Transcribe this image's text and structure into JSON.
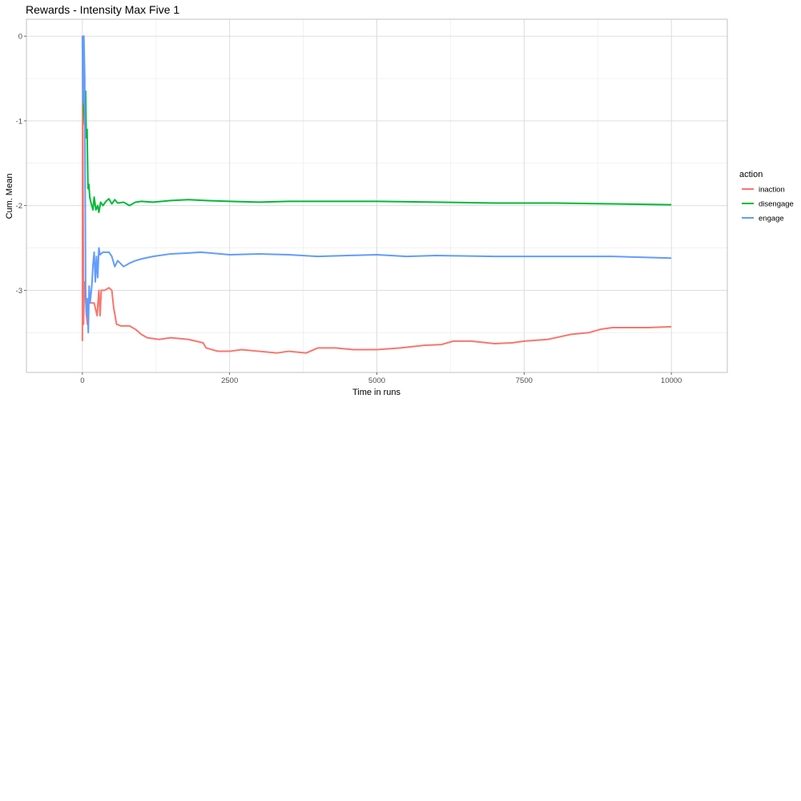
{
  "chart_data": {
    "type": "line",
    "title": "Rewards - Intensity Max Five 1",
    "xlabel": "Time in runs",
    "ylabel": "Cum. Mean",
    "xlim": [
      -950,
      10950
    ],
    "ylim": [
      -3.97,
      0.2
    ],
    "x_ticks": [
      0,
      2500,
      5000,
      7500,
      10000
    ],
    "x_tick_labels": [
      "0",
      "2500",
      "5000",
      "7500",
      "10000"
    ],
    "y_ticks": [
      0,
      -1,
      -2,
      -3
    ],
    "y_tick_labels": [
      "0",
      "-1",
      "-2",
      "-3"
    ],
    "grid": true,
    "legend": {
      "title": "action",
      "position": "right"
    },
    "series": [
      {
        "name": "inaction",
        "color": "#F8766D",
        "points": [
          [
            0,
            -3.6
          ],
          [
            5,
            0
          ],
          [
            10,
            -1.5
          ],
          [
            20,
            -3.4
          ],
          [
            30,
            -3.0
          ],
          [
            40,
            -2.9
          ],
          [
            55,
            -3.1
          ],
          [
            70,
            -3.3
          ],
          [
            85,
            -3.4
          ],
          [
            100,
            -3.15
          ],
          [
            200,
            -3.15
          ],
          [
            250,
            -3.3
          ],
          [
            280,
            -3.0
          ],
          [
            300,
            -3.3
          ],
          [
            320,
            -3.0
          ],
          [
            380,
            -3.0
          ],
          [
            450,
            -2.97
          ],
          [
            500,
            -3.0
          ],
          [
            530,
            -3.2
          ],
          [
            580,
            -3.4
          ],
          [
            650,
            -3.42
          ],
          [
            800,
            -3.42
          ],
          [
            900,
            -3.46
          ],
          [
            1000,
            -3.52
          ],
          [
            1100,
            -3.56
          ],
          [
            1300,
            -3.58
          ],
          [
            1500,
            -3.56
          ],
          [
            1800,
            -3.58
          ],
          [
            2050,
            -3.62
          ],
          [
            2100,
            -3.68
          ],
          [
            2300,
            -3.72
          ],
          [
            2500,
            -3.72
          ],
          [
            2700,
            -3.7
          ],
          [
            3000,
            -3.72
          ],
          [
            3300,
            -3.74
          ],
          [
            3500,
            -3.72
          ],
          [
            3800,
            -3.74
          ],
          [
            4000,
            -3.68
          ],
          [
            4300,
            -3.68
          ],
          [
            4600,
            -3.7
          ],
          [
            5000,
            -3.7
          ],
          [
            5400,
            -3.68
          ],
          [
            5800,
            -3.65
          ],
          [
            6100,
            -3.64
          ],
          [
            6300,
            -3.6
          ],
          [
            6600,
            -3.6
          ],
          [
            7000,
            -3.63
          ],
          [
            7300,
            -3.62
          ],
          [
            7500,
            -3.6
          ],
          [
            7900,
            -3.58
          ],
          [
            8100,
            -3.55
          ],
          [
            8300,
            -3.52
          ],
          [
            8600,
            -3.5
          ],
          [
            8800,
            -3.46
          ],
          [
            9000,
            -3.44
          ],
          [
            9300,
            -3.44
          ],
          [
            9600,
            -3.44
          ],
          [
            10000,
            -3.43
          ]
        ]
      },
      {
        "name": "disengage",
        "color": "#00BA38",
        "points": [
          [
            0,
            -0.1
          ],
          [
            10,
            -0.3
          ],
          [
            25,
            -0.9
          ],
          [
            40,
            -1.05
          ],
          [
            55,
            -0.65
          ],
          [
            65,
            -1.2
          ],
          [
            80,
            -1.1
          ],
          [
            95,
            -1.8
          ],
          [
            110,
            -1.75
          ],
          [
            125,
            -1.9
          ],
          [
            140,
            -1.95
          ],
          [
            160,
            -2.0
          ],
          [
            180,
            -2.05
          ],
          [
            200,
            -1.9
          ],
          [
            230,
            -2.05
          ],
          [
            260,
            -2.0
          ],
          [
            280,
            -2.08
          ],
          [
            310,
            -1.96
          ],
          [
            350,
            -2.0
          ],
          [
            400,
            -1.95
          ],
          [
            450,
            -1.92
          ],
          [
            500,
            -1.98
          ],
          [
            550,
            -1.93
          ],
          [
            600,
            -1.97
          ],
          [
            700,
            -1.96
          ],
          [
            800,
            -2.0
          ],
          [
            900,
            -1.96
          ],
          [
            1000,
            -1.95
          ],
          [
            1200,
            -1.96
          ],
          [
            1500,
            -1.94
          ],
          [
            1800,
            -1.93
          ],
          [
            2100,
            -1.94
          ],
          [
            2500,
            -1.95
          ],
          [
            3000,
            -1.96
          ],
          [
            3500,
            -1.95
          ],
          [
            4000,
            -1.95
          ],
          [
            5000,
            -1.95
          ],
          [
            6000,
            -1.96
          ],
          [
            7000,
            -1.97
          ],
          [
            8000,
            -1.97
          ],
          [
            9000,
            -1.98
          ],
          [
            10000,
            -1.99
          ]
        ]
      },
      {
        "name": "engage",
        "color": "#619CFF",
        "points": [
          [
            0,
            0
          ],
          [
            10,
            -0.8
          ],
          [
            25,
            0
          ],
          [
            40,
            -0.5
          ],
          [
            55,
            -3.0
          ],
          [
            70,
            -3.3
          ],
          [
            85,
            -3.1
          ],
          [
            100,
            -3.5
          ],
          [
            115,
            -2.95
          ],
          [
            130,
            -3.15
          ],
          [
            145,
            -3.05
          ],
          [
            160,
            -2.95
          ],
          [
            180,
            -2.7
          ],
          [
            200,
            -2.55
          ],
          [
            220,
            -2.9
          ],
          [
            240,
            -2.6
          ],
          [
            260,
            -2.85
          ],
          [
            280,
            -2.5
          ],
          [
            300,
            -2.58
          ],
          [
            350,
            -2.55
          ],
          [
            400,
            -2.55
          ],
          [
            450,
            -2.55
          ],
          [
            500,
            -2.6
          ],
          [
            550,
            -2.72
          ],
          [
            600,
            -2.65
          ],
          [
            700,
            -2.72
          ],
          [
            800,
            -2.68
          ],
          [
            900,
            -2.65
          ],
          [
            1000,
            -2.63
          ],
          [
            1200,
            -2.6
          ],
          [
            1500,
            -2.57
          ],
          [
            1800,
            -2.56
          ],
          [
            2000,
            -2.55
          ],
          [
            2500,
            -2.58
          ],
          [
            3000,
            -2.57
          ],
          [
            3500,
            -2.58
          ],
          [
            4000,
            -2.6
          ],
          [
            4500,
            -2.59
          ],
          [
            5000,
            -2.58
          ],
          [
            5500,
            -2.6
          ],
          [
            6000,
            -2.59
          ],
          [
            7000,
            -2.6
          ],
          [
            8000,
            -2.6
          ],
          [
            9000,
            -2.6
          ],
          [
            10000,
            -2.62
          ]
        ]
      }
    ]
  }
}
